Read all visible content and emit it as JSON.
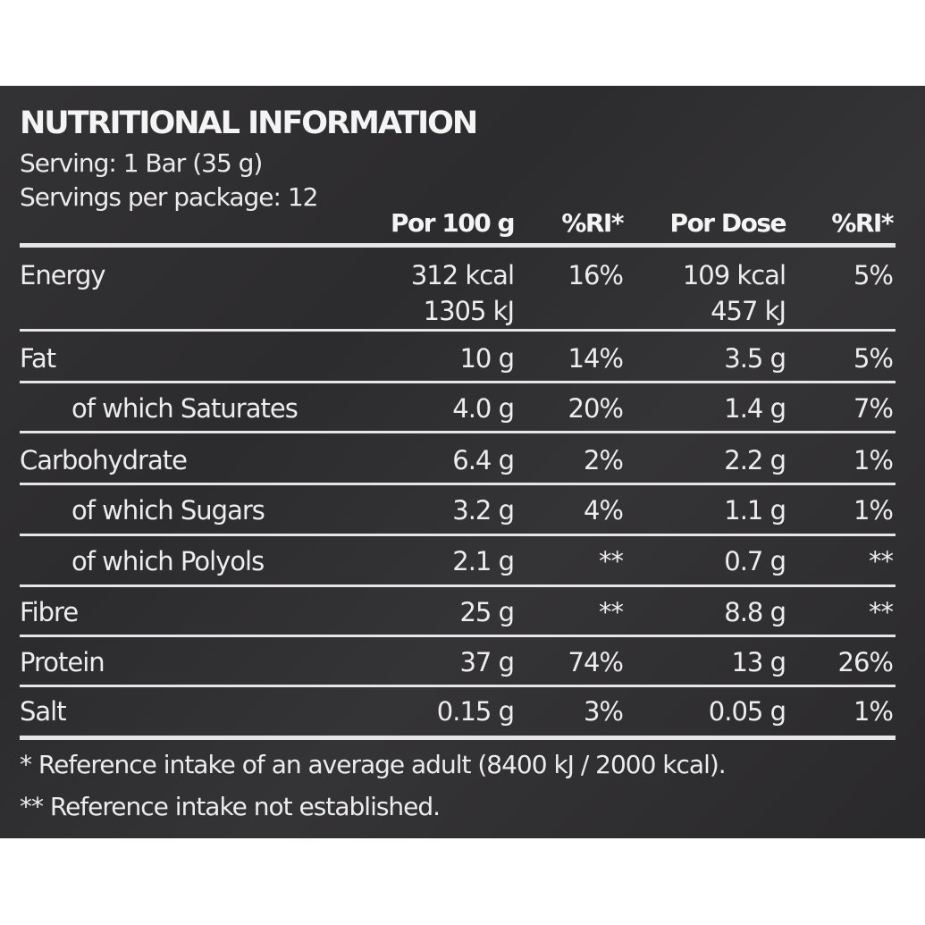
{
  "title": "NUTRITIONAL INFORMATION",
  "serving": "Serving: 1 Bar (35 g)",
  "servings_per_package": "Servings per package: 12",
  "headers": {
    "per100": "Por 100 g",
    "ri100": "%RI*",
    "perdose": "Por Dose",
    "ridose": "%RI*"
  },
  "rows": [
    {
      "name": "Energy",
      "per100": "312 kcal",
      "per100_2": "1305 kJ",
      "ri100": "16%",
      "perdose": "109 kcal",
      "perdose_2": "457 kJ",
      "ridose": "5%"
    },
    {
      "name": "Fat",
      "per100": "10 g",
      "ri100": "14%",
      "perdose": "3.5 g",
      "ridose": "5%"
    },
    {
      "name": "of which Saturates",
      "per100": "4.0 g",
      "ri100": "20%",
      "perdose": "1.4 g",
      "ridose": "7%"
    },
    {
      "name": "Carbohydrate",
      "per100": "6.4 g",
      "ri100": "2%",
      "perdose": "2.2 g",
      "ridose": "1%"
    },
    {
      "name": "of which Sugars",
      "per100": "3.2 g",
      "ri100": "4%",
      "perdose": "1.1 g",
      "ridose": "1%"
    },
    {
      "name": "of which Polyols",
      "per100": "2.1 g",
      "ri100": "**",
      "perdose": "0.7 g",
      "ridose": "**"
    },
    {
      "name": "Fibre",
      "per100": "25 g",
      "ri100": "**",
      "perdose": "8.8 g",
      "ridose": "**"
    },
    {
      "name": "Protein",
      "per100": "37 g",
      "ri100": "74%",
      "perdose": "13 g",
      "ridose": "26%"
    },
    {
      "name": "Salt",
      "per100": "0.15 g",
      "ri100": "3%",
      "perdose": "0.05 g",
      "ridose": "1%"
    }
  ],
  "footnotes": [
    "* Reference intake of an average adult (8400 kJ / 2000 kcal).",
    "** Reference intake not established."
  ],
  "colors": {
    "background": "#2c2b2d",
    "text": "#f2f2f2",
    "rule": "#e6e6e6"
  }
}
